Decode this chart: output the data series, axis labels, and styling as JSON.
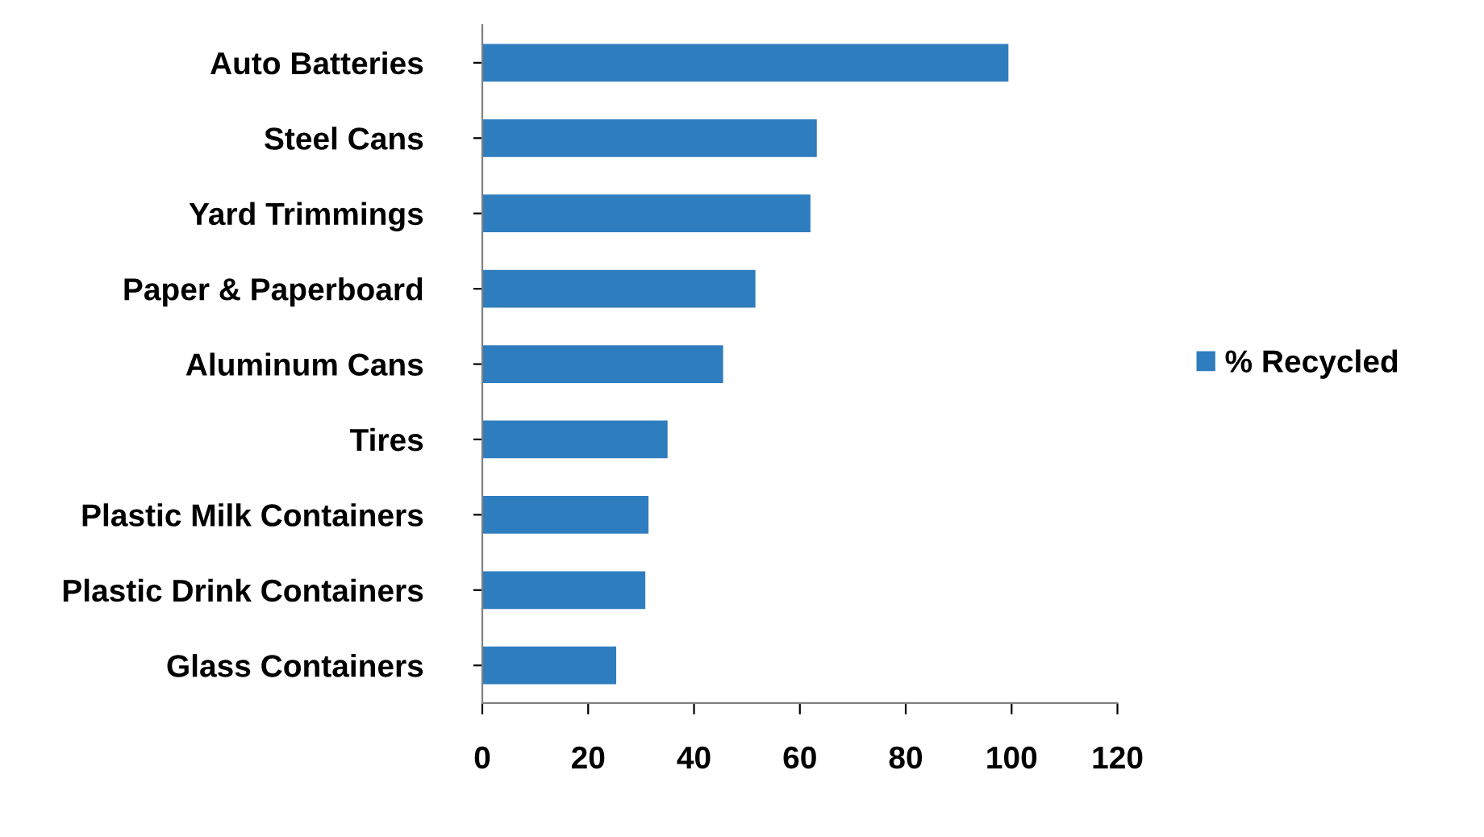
{
  "chart_data": {
    "type": "bar",
    "orientation": "horizontal",
    "categories": [
      "Auto Batteries",
      "Steel Cans",
      "Yard Trimmings",
      "Paper & Paperboard",
      "Aluminum Cans",
      "Tires",
      "Plastic Milk Containers",
      "Plastic Drink Containers",
      "Glass Containers"
    ],
    "series": [
      {
        "name": "% Recycled",
        "color": "#2e7dbf",
        "values": [
          99.4,
          63.2,
          62,
          51.6,
          45.5,
          35,
          31.4,
          30.8,
          25.3
        ]
      }
    ],
    "xlim": [
      0,
      120
    ],
    "xticks": [
      0,
      20,
      40,
      60,
      80,
      100,
      120
    ],
    "grid": false,
    "legend": "right"
  }
}
